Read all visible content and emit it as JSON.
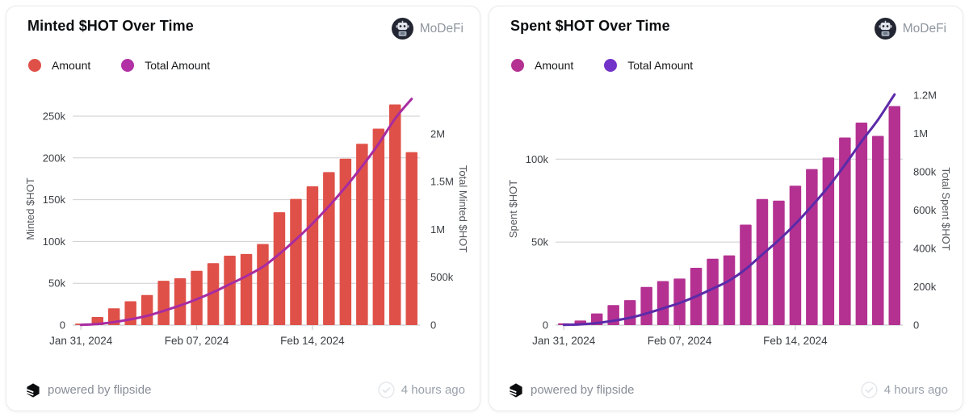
{
  "cards": [
    {
      "title": "Minted $HOT Over Time",
      "brand": "MoDeFi",
      "footer": {
        "powered_by": "powered by flipside",
        "updated": "4 hours ago"
      }
    },
    {
      "title": "Spent $HOT Over Time",
      "brand": "MoDeFi",
      "footer": {
        "powered_by": "powered by flipside",
        "updated": "4 hours ago"
      }
    }
  ],
  "colors": {
    "minted_bar": "#df5148",
    "minted_total_line": "#a82ba1",
    "minted_total_legend": "#b231a5",
    "spent_bar": "#b43191",
    "spent_total_line": "#5b2aa9",
    "spent_total_legend": "#7233c9",
    "grid": "#cdced1",
    "baseline": "#bfc1c5"
  },
  "chart_data": [
    {
      "type": "bar+line",
      "title": "Minted $HOT Over Time",
      "x": [
        "Jan 31, 2024",
        "Feb 01, 2024",
        "Feb 02, 2024",
        "Feb 03, 2024",
        "Feb 04, 2024",
        "Feb 05, 2024",
        "Feb 06, 2024",
        "Feb 07, 2024",
        "Feb 08, 2024",
        "Feb 09, 2024",
        "Feb 10, 2024",
        "Feb 11, 2024",
        "Feb 12, 2024",
        "Feb 13, 2024",
        "Feb 14, 2024",
        "Feb 15, 2024",
        "Feb 16, 2024",
        "Feb 17, 2024",
        "Feb 18, 2024",
        "Feb 19, 2024",
        "Feb 20, 2024"
      ],
      "x_tick_indices": [
        0,
        7,
        14
      ],
      "x_tick_labels": [
        "Jan 31, 2024",
        "Feb 07, 2024",
        "Feb 14, 2024"
      ],
      "series": [
        {
          "name": "Amount",
          "type": "bar",
          "axis": "left",
          "color": "#df5148",
          "values": [
            1600,
            9700,
            20000,
            28500,
            36000,
            53000,
            56000,
            65000,
            74000,
            83000,
            85000,
            97000,
            135000,
            151000,
            166000,
            183000,
            199000,
            217000,
            235000,
            264000,
            207000
          ]
        },
        {
          "name": "Total Amount",
          "type": "line",
          "axis": "right",
          "color": "#a82ba1",
          "legend_color": "#b231a5",
          "values": [
            1600,
            11300,
            31300,
            59800,
            95800,
            148800,
            204800,
            269800,
            343800,
            426800,
            511800,
            608800,
            743800,
            894800,
            1060800,
            1243800,
            1442800,
            1659800,
            1894800,
            2158800,
            2365800
          ]
        }
      ],
      "left_axis": {
        "label": "Minted $HOT",
        "max": 278000,
        "ticks": [
          0,
          50000,
          100000,
          150000,
          200000,
          250000
        ],
        "tick_labels": [
          "0",
          "50k",
          "100k",
          "150k",
          "200k",
          "250k"
        ]
      },
      "right_axis": {
        "label": "Total Minted $HOT",
        "max": 2430000,
        "ticks": [
          0,
          500000,
          1000000,
          1500000,
          2000000
        ],
        "tick_labels": [
          "0",
          "500k",
          "1M",
          "1.5M",
          "2M"
        ]
      },
      "grid": "horizontal",
      "legend_position": "top-left"
    },
    {
      "type": "bar+line",
      "title": "Spent $HOT Over Time",
      "x": [
        "Jan 31, 2024",
        "Feb 01, 2024",
        "Feb 02, 2024",
        "Feb 03, 2024",
        "Feb 04, 2024",
        "Feb 05, 2024",
        "Feb 06, 2024",
        "Feb 07, 2024",
        "Feb 08, 2024",
        "Feb 09, 2024",
        "Feb 10, 2024",
        "Feb 11, 2024",
        "Feb 12, 2024",
        "Feb 13, 2024",
        "Feb 14, 2024",
        "Feb 15, 2024",
        "Feb 16, 2024",
        "Feb 17, 2024",
        "Feb 18, 2024",
        "Feb 19, 2024",
        "Feb 20, 2024"
      ],
      "x_tick_indices": [
        0,
        7,
        14
      ],
      "x_tick_labels": [
        "Jan 31, 2024",
        "Feb 07, 2024",
        "Feb 14, 2024"
      ],
      "series": [
        {
          "name": "Amount",
          "type": "bar",
          "axis": "left",
          "color": "#b43191",
          "values": [
            1000,
            2700,
            7000,
            12000,
            15000,
            23000,
            26500,
            28000,
            34500,
            40000,
            42000,
            60500,
            76000,
            75000,
            84000,
            94000,
            101000,
            113000,
            122000,
            114000,
            132000
          ]
        },
        {
          "name": "Total Amount",
          "type": "line",
          "axis": "right",
          "color": "#5b2aa9",
          "legend_color": "#7233c9",
          "values": [
            1000,
            3700,
            10700,
            22700,
            37700,
            60700,
            87200,
            115200,
            149700,
            189700,
            231700,
            292200,
            368200,
            443200,
            527200,
            621200,
            722200,
            835200,
            957200,
            1071200,
            1203200
          ]
        }
      ],
      "left_axis": {
        "label": "Spent $HOT",
        "max": 140000,
        "ticks": [
          0,
          50000,
          100000
        ],
        "tick_labels": [
          "0",
          "50k",
          "100k"
        ]
      },
      "right_axis": {
        "label": "Total Spent $HOT",
        "max": 1212000,
        "ticks": [
          0,
          200000,
          400000,
          600000,
          800000,
          1000000,
          1200000
        ],
        "tick_labels": [
          "0",
          "200k",
          "400k",
          "600k",
          "800k",
          "1M",
          "1.2M"
        ]
      },
      "grid": "horizontal",
      "legend_position": "top-left"
    }
  ]
}
